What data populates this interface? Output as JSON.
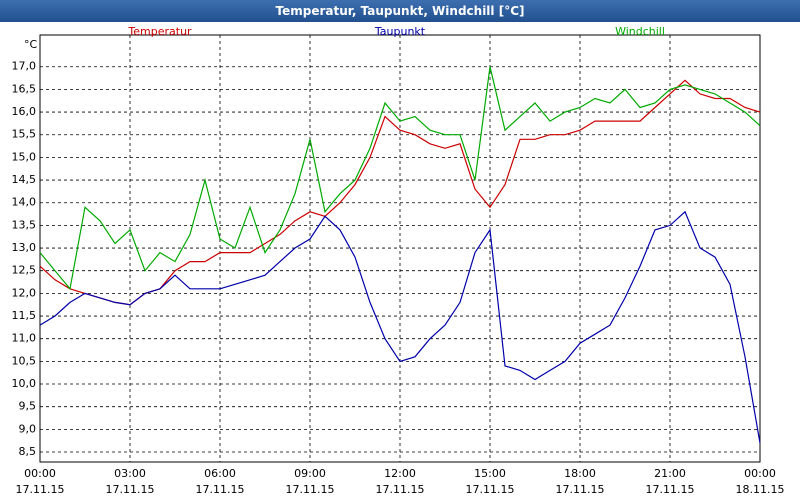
{
  "chart_data": {
    "type": "line",
    "title": "Temperatur, Taupunkt, Windchill [°C]",
    "y_unit": "°C",
    "x": [
      0,
      0.5,
      1,
      1.5,
      2,
      2.5,
      3,
      3.5,
      4,
      4.5,
      5,
      5.5,
      6,
      6.5,
      7,
      7.5,
      8,
      8.5,
      9,
      9.5,
      10,
      10.5,
      11,
      11.5,
      12,
      12.5,
      13,
      13.5,
      14,
      14.5,
      15,
      15.5,
      16,
      16.5,
      17,
      17.5,
      18,
      18.5,
      19,
      19.5,
      20,
      20.5,
      21,
      21.5,
      22,
      22.5,
      23,
      23.5,
      24
    ],
    "series": [
      {
        "name": "Temperatur",
        "color": "#cc0000",
        "values": [
          12.6,
          12.3,
          12.1,
          12.0,
          11.9,
          11.8,
          11.75,
          12.0,
          12.1,
          12.5,
          12.7,
          12.7,
          12.9,
          12.9,
          12.9,
          13.1,
          13.3,
          13.6,
          13.8,
          13.7,
          14.0,
          14.4,
          15.0,
          15.9,
          15.6,
          15.5,
          15.3,
          15.2,
          15.3,
          14.3,
          13.9,
          14.4,
          15.4,
          15.4,
          15.5,
          15.5,
          15.6,
          15.8,
          15.8,
          15.8,
          15.8,
          16.1,
          16.4,
          16.7,
          16.4,
          16.3,
          16.3,
          16.1,
          16.0
        ]
      },
      {
        "name": "Taupunkt",
        "color": "#0000aa",
        "values": [
          11.3,
          11.5,
          11.8,
          12.0,
          11.9,
          11.8,
          11.75,
          12.0,
          12.1,
          12.4,
          12.1,
          12.1,
          12.1,
          12.2,
          12.3,
          12.4,
          12.7,
          13.0,
          13.2,
          13.7,
          13.4,
          12.8,
          11.8,
          11.0,
          10.5,
          10.6,
          11.0,
          11.3,
          11.8,
          12.9,
          13.4,
          10.4,
          10.3,
          10.1,
          10.3,
          10.5,
          10.9,
          11.1,
          11.3,
          11.9,
          12.6,
          13.4,
          13.5,
          13.8,
          13.0,
          12.8,
          12.2,
          10.6,
          8.7
        ]
      },
      {
        "name": "Windchill",
        "color": "#00aa00",
        "values": [
          12.9,
          12.5,
          12.1,
          13.9,
          13.6,
          13.1,
          13.4,
          12.5,
          12.9,
          12.7,
          13.3,
          14.5,
          13.2,
          13.0,
          13.9,
          12.9,
          13.4,
          14.2,
          15.4,
          13.8,
          14.2,
          14.5,
          15.2,
          16.2,
          15.8,
          15.9,
          15.6,
          15.5,
          15.5,
          14.5,
          17.0,
          15.6,
          15.9,
          16.2,
          15.8,
          16.0,
          16.1,
          16.3,
          16.2,
          16.5,
          16.1,
          16.2,
          16.5,
          16.6,
          16.5,
          16.4,
          16.2,
          16.0,
          15.7
        ]
      }
    ],
    "xlim": [
      0,
      24
    ],
    "xticks": [
      {
        "value": 0,
        "label": "00:00"
      },
      {
        "value": 3,
        "label": "03:00"
      },
      {
        "value": 6,
        "label": "06:00"
      },
      {
        "value": 9,
        "label": "09:00"
      },
      {
        "value": 12,
        "label": "12:00"
      },
      {
        "value": 15,
        "label": "15:00"
      },
      {
        "value": 18,
        "label": "18:00"
      },
      {
        "value": 21,
        "label": "21:00"
      },
      {
        "value": 24,
        "label": "00:00"
      }
    ],
    "xtick_dates": [
      "17.11.15",
      "17.11.15",
      "17.11.15",
      "17.11.15",
      "17.11.15",
      "17.11.15",
      "17.11.15",
      "17.11.15",
      "18.11.15"
    ],
    "ylim": [
      8.28,
      17.7
    ],
    "yticks": [
      {
        "value": 8.5,
        "label": "8,5"
      },
      {
        "value": 9,
        "label": "9,0"
      },
      {
        "value": 9.5,
        "label": "9,5"
      },
      {
        "value": 10,
        "label": "10,0"
      },
      {
        "value": 10.5,
        "label": "10,5"
      },
      {
        "value": 11,
        "label": "11,0"
      },
      {
        "value": 11.5,
        "label": "11,5"
      },
      {
        "value": 12,
        "label": "12,0"
      },
      {
        "value": 12.5,
        "label": "12,5"
      },
      {
        "value": 13,
        "label": "13,0"
      },
      {
        "value": 13.5,
        "label": "13,5"
      },
      {
        "value": 14,
        "label": "14,0"
      },
      {
        "value": 14.5,
        "label": "14,5"
      },
      {
        "value": 15,
        "label": "15,0"
      },
      {
        "value": 15.5,
        "label": "15,5"
      },
      {
        "value": 16,
        "label": "16,0"
      },
      {
        "value": 16.5,
        "label": "16,5"
      },
      {
        "value": 17,
        "label": "17,0"
      }
    ],
    "grid": true
  }
}
